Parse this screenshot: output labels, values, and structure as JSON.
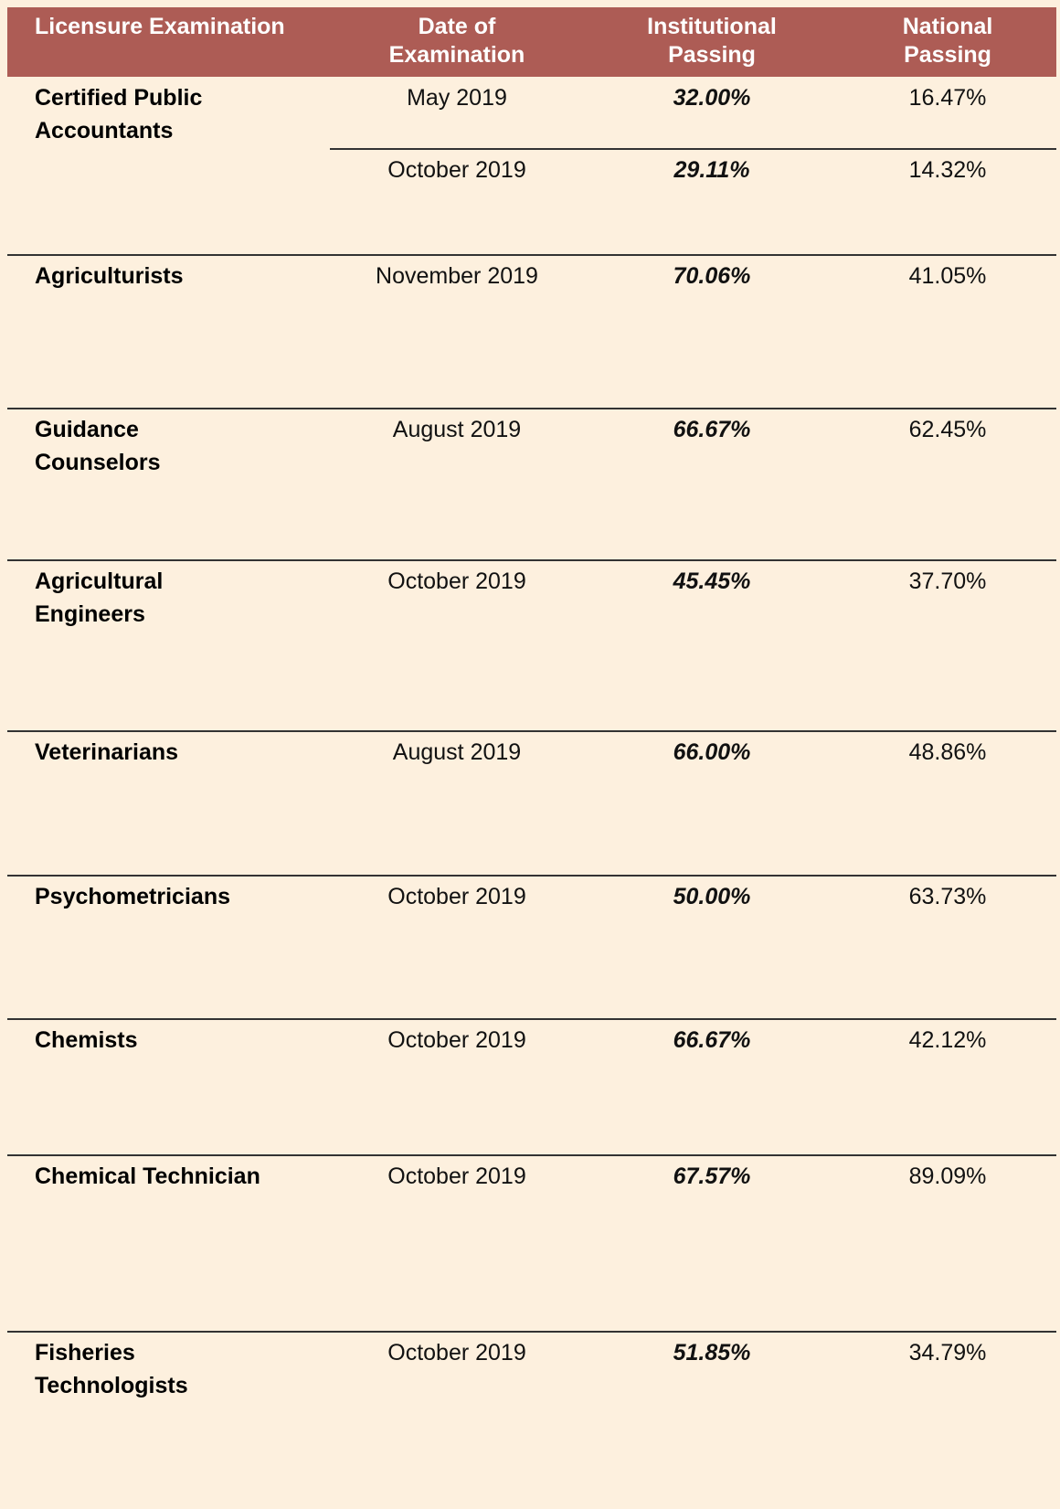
{
  "table": {
    "header": [
      [
        "Licensure Examination"
      ],
      [
        "Date of",
        "Examination"
      ],
      [
        "Institutional",
        "Passing"
      ],
      [
        "National",
        "Passing"
      ]
    ],
    "rows": [
      {
        "exam": [
          "Certified Public",
          "Accountants"
        ],
        "entries": [
          {
            "date": "May 2019",
            "institutional": "32.00%",
            "national": "16.47%"
          },
          {
            "date": "October 2019",
            "institutional": "29.11%",
            "national": "14.32%"
          }
        ]
      },
      {
        "exam": [
          "Agriculturists"
        ],
        "entries": [
          {
            "date": "November 2019",
            "institutional": "70.06%",
            "national": "41.05%"
          }
        ]
      },
      {
        "exam": [
          "Guidance",
          "Counselors"
        ],
        "entries": [
          {
            "date": "August 2019",
            "institutional": "66.67%",
            "national": "62.45%"
          }
        ]
      },
      {
        "exam": [
          "Agricultural",
          "Engineers"
        ],
        "entries": [
          {
            "date": "October 2019",
            "institutional": "45.45%",
            "national": "37.70%"
          }
        ]
      },
      {
        "exam": [
          "Veterinarians"
        ],
        "entries": [
          {
            "date": "August 2019",
            "institutional": "66.00%",
            "national": "48.86%"
          }
        ]
      },
      {
        "exam": [
          "Psychometricians"
        ],
        "entries": [
          {
            "date": "October 2019",
            "institutional": "50.00%",
            "national": "63.73%"
          }
        ]
      },
      {
        "exam": [
          "Chemists"
        ],
        "entries": [
          {
            "date": "October 2019",
            "institutional": "66.67%",
            "national": "42.12%"
          }
        ]
      },
      {
        "exam": [
          "Chemical Technician"
        ],
        "entries": [
          {
            "date": "October 2019",
            "institutional": "67.57%",
            "national": "89.09%"
          }
        ]
      },
      {
        "exam": [
          "Fisheries",
          "Technologists"
        ],
        "entries": [
          {
            "date": "October 2019",
            "institutional": "51.85%",
            "national": "34.79%"
          }
        ]
      }
    ]
  }
}
